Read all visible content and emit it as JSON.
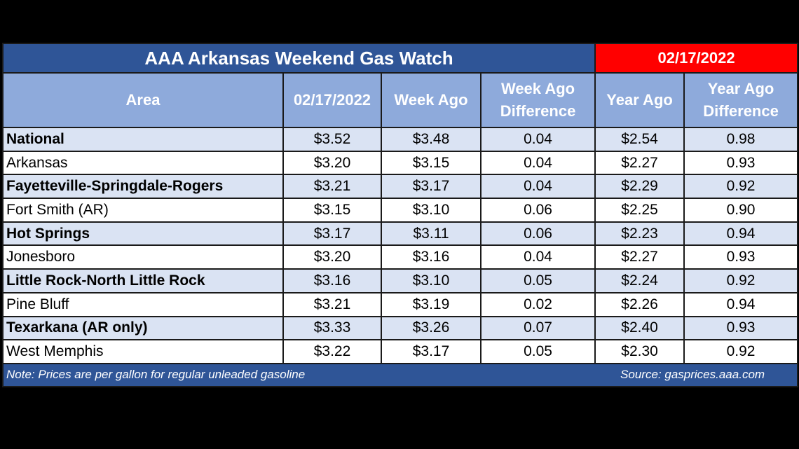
{
  "header": {
    "title": "AAA Arkansas Weekend Gas Watch",
    "date": "02/17/2022"
  },
  "table": {
    "columns": [
      "Area",
      "02/17/2022",
      "Week Ago",
      "Week Ago Difference",
      "Year Ago",
      "Year Ago Difference"
    ],
    "rows": [
      [
        "National",
        "$3.52",
        "$3.48",
        "0.04",
        "$2.54",
        "0.98"
      ],
      [
        "Arkansas",
        "$3.20",
        "$3.15",
        "0.04",
        "$2.27",
        "0.93"
      ],
      [
        "Fayetteville-Springdale-Rogers",
        "$3.21",
        "$3.17",
        "0.04",
        "$2.29",
        "0.92"
      ],
      [
        "Fort Smith (AR)",
        "$3.15",
        "$3.10",
        "0.06",
        "$2.25",
        "0.90"
      ],
      [
        "Hot Springs",
        "$3.17",
        "$3.11",
        "0.06",
        "$2.23",
        "0.94"
      ],
      [
        "Jonesboro",
        "$3.20",
        "$3.16",
        "0.04",
        "$2.27",
        "0.93"
      ],
      [
        "Little Rock-North Little Rock",
        "$3.16",
        "$3.10",
        "0.05",
        "$2.24",
        "0.92"
      ],
      [
        "Pine Bluff",
        "$3.21",
        "$3.19",
        "0.02",
        "$2.26",
        "0.94"
      ],
      [
        "Texarkana (AR only)",
        "$3.33",
        "$3.26",
        "0.07",
        "$2.40",
        "0.93"
      ],
      [
        "West Memphis",
        "$3.22",
        "$3.17",
        "0.05",
        "$2.30",
        "0.92"
      ]
    ]
  },
  "footer": {
    "note": "Note: Prices are per gallon for regular unleaded gasoline",
    "source": "Source: gasprices.aaa.com"
  }
}
